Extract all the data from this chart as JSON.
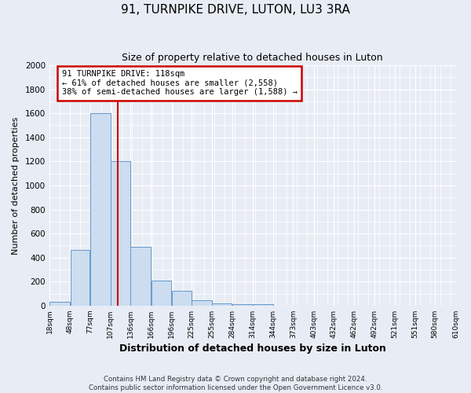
{
  "title": "91, TURNPIKE DRIVE, LUTON, LU3 3RA",
  "subtitle": "Size of property relative to detached houses in Luton",
  "xlabel": "Distribution of detached houses by size in Luton",
  "ylabel": "Number of detached properties",
  "bar_color": "#ccddf0",
  "bar_edge_color": "#6699cc",
  "background_color": "#e8edf5",
  "plot_bg_color": "#e8edf5",
  "grid_color": "#ffffff",
  "vline_x": 118,
  "vline_color": "#cc0000",
  "annotation_title": "91 TURNPIKE DRIVE: 118sqm",
  "annotation_line1": "← 61% of detached houses are smaller (2,558)",
  "annotation_line2": "38% of semi-detached houses are larger (1,588) →",
  "annotation_box_color": "#ffffff",
  "annotation_box_edge": "#cc0000",
  "bins": [
    18,
    48,
    77,
    107,
    136,
    166,
    196,
    225,
    255,
    284,
    314,
    344,
    373,
    403,
    432,
    462,
    492,
    521,
    551,
    580,
    610
  ],
  "counts": [
    30,
    460,
    1600,
    1200,
    490,
    210,
    120,
    45,
    20,
    15,
    10,
    0,
    0,
    0,
    0,
    0,
    0,
    0,
    0,
    0
  ],
  "ylim": [
    0,
    2000
  ],
  "yticks": [
    0,
    200,
    400,
    600,
    800,
    1000,
    1200,
    1400,
    1600,
    1800,
    2000
  ],
  "footer1": "Contains HM Land Registry data © Crown copyright and database right 2024.",
  "footer2": "Contains public sector information licensed under the Open Government Licence v3.0."
}
